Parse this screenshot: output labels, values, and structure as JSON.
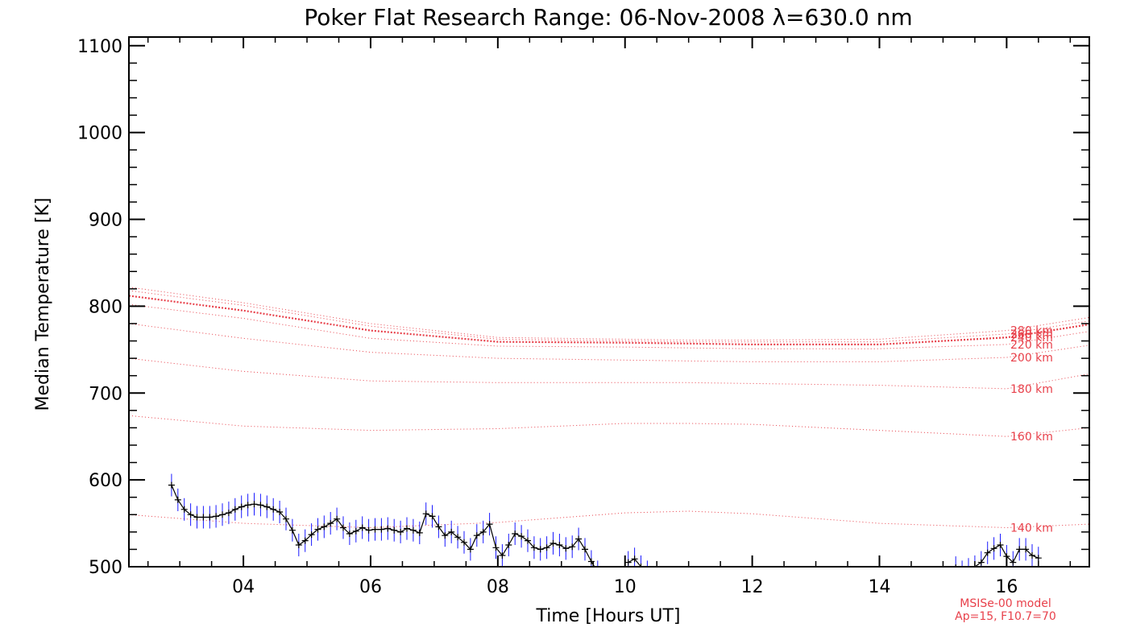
{
  "chart_data": {
    "type": "line",
    "title": "Poker Flat Research Range: 06-Nov-2008 λ=630.0 nm",
    "xlabel": "Time [Hours UT]",
    "ylabel": "Median Temperature [K]",
    "xlim": [
      2.2,
      17.3
    ],
    "ylim": [
      500,
      1110
    ],
    "x_ticks": [
      4,
      6,
      8,
      10,
      12,
      14,
      16
    ],
    "x_tick_labels": [
      "04",
      "06",
      "08",
      "10",
      "12",
      "14",
      "16"
    ],
    "y_ticks": [
      500,
      600,
      700,
      800,
      900,
      1000,
      1100
    ],
    "y_tick_labels": [
      "500",
      "600",
      "700",
      "800",
      "900",
      "1000",
      "1100"
    ],
    "grid": false,
    "annotations": [
      "MSISe-00 model",
      "Ap=15, F10.7=70"
    ],
    "colors": {
      "measured": "#000000",
      "error_bars": "#1a1aff",
      "model": "#e8414b"
    },
    "measured": {
      "x": [
        2.87,
        2.97,
        3.07,
        3.17,
        3.27,
        3.37,
        3.47,
        3.57,
        3.67,
        3.77,
        3.87,
        3.97,
        4.07,
        4.17,
        4.27,
        4.37,
        4.47,
        4.57,
        4.67,
        4.77,
        4.87,
        4.97,
        5.07,
        5.17,
        5.27,
        5.37,
        5.47,
        5.57,
        5.67,
        5.77,
        5.87,
        5.97,
        6.07,
        6.17,
        6.27,
        6.37,
        6.47,
        6.57,
        6.67,
        6.77,
        6.87,
        6.97,
        7.07,
        7.17,
        7.27,
        7.37,
        7.47,
        7.57,
        7.67,
        7.77,
        7.87,
        7.97,
        8.07,
        8.17,
        8.27,
        8.37,
        8.47,
        8.57,
        8.67,
        8.77,
        8.87,
        8.97,
        9.07,
        9.17,
        9.27,
        9.37,
        9.47,
        9.57,
        10.05,
        10.15,
        10.25,
        10.35,
        15.2,
        15.3,
        15.4,
        15.5,
        15.6,
        15.7,
        15.8,
        15.9,
        16.0,
        16.1,
        16.2,
        16.3,
        16.4,
        16.5
      ],
      "y": [
        594,
        577,
        566,
        560,
        557,
        557,
        557,
        558,
        560,
        562,
        566,
        569,
        571,
        572,
        571,
        569,
        566,
        563,
        555,
        542,
        525,
        530,
        537,
        543,
        546,
        550,
        555,
        545,
        538,
        541,
        545,
        542,
        543,
        543,
        544,
        542,
        540,
        544,
        542,
        539,
        561,
        558,
        546,
        536,
        540,
        534,
        528,
        520,
        536,
        540,
        549,
        522,
        513,
        525,
        538,
        535,
        530,
        522,
        520,
        522,
        527,
        525,
        521,
        523,
        532,
        520,
        506,
        494,
        505,
        509,
        500,
        494,
        499,
        494,
        497,
        500,
        505,
        516,
        521,
        525,
        512,
        505,
        520,
        520,
        513,
        510
      ],
      "error": 13
    },
    "series": [
      {
        "name": "140 km",
        "x": [
          2.2,
          4,
          6,
          8,
          10,
          11,
          12,
          14,
          16,
          17.3
        ],
        "values": [
          560,
          550,
          545,
          551,
          562,
          564,
          561,
          550,
          545,
          549
        ]
      },
      {
        "name": "160 km",
        "x": [
          2.2,
          4,
          6,
          8,
          10,
          11,
          12,
          14,
          16,
          17.3
        ],
        "values": [
          674,
          662,
          657,
          659,
          665,
          665,
          664,
          657,
          650,
          660
        ]
      },
      {
        "name": "180 km",
        "x": [
          2.2,
          4,
          6,
          8,
          10,
          11,
          12,
          14,
          16,
          17.3
        ],
        "values": [
          740,
          725,
          714,
          712,
          712,
          712,
          711,
          709,
          705,
          722
        ]
      },
      {
        "name": "200 km",
        "x": [
          2.2,
          4,
          6,
          8,
          10,
          11,
          12,
          14,
          16,
          17.3
        ],
        "values": [
          780,
          763,
          747,
          740,
          738,
          737,
          736,
          736,
          741,
          755
        ]
      },
      {
        "name": "220 km",
        "x": [
          2.2,
          4,
          6,
          8,
          10,
          11,
          12,
          14,
          16,
          17.3
        ],
        "values": [
          802,
          786,
          763,
          754,
          753,
          752,
          751,
          751,
          756,
          771
        ]
      },
      {
        "name": "240 km",
        "x": [
          2.2,
          4,
          6,
          8,
          10,
          11,
          12,
          14,
          16,
          17.3
        ],
        "values": [
          812,
          795,
          772,
          759,
          758,
          757,
          756,
          756,
          764,
          779
        ]
      },
      {
        "name": "260 km",
        "x": [
          2.2,
          4,
          6,
          8,
          10,
          11,
          12,
          14,
          16,
          17.3
        ],
        "values": [
          818,
          801,
          777,
          762,
          760,
          759,
          759,
          759,
          768,
          783
        ]
      },
      {
        "name": "280 km",
        "x": [
          2.2,
          4,
          6,
          8,
          10,
          11,
          12,
          14,
          16,
          17.3
        ],
        "values": [
          822,
          804,
          780,
          764,
          762,
          761,
          761,
          762,
          772,
          787
        ]
      }
    ]
  }
}
